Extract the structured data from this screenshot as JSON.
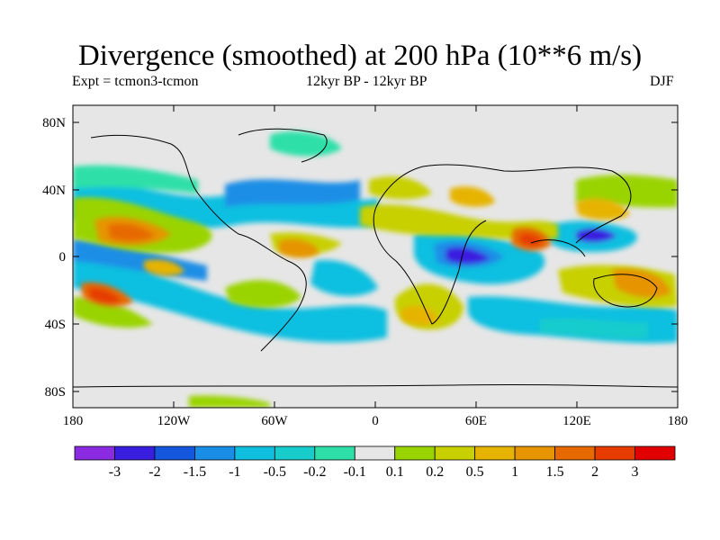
{
  "title": "Divergence (smoothed) at 200 hPa (10**6 m/s)",
  "experiment": "Expt = tcmon3-tcmon",
  "period": "12kyr BP - 12kyr BP",
  "season": "DJF",
  "lat_ticks": [
    "80N",
    "40N",
    "0",
    "40S",
    "80S"
  ],
  "lon_ticks": [
    "180",
    "120W",
    "60W",
    "0",
    "60E",
    "120E",
    "180"
  ],
  "legend": {
    "colors": [
      "#8a2be2",
      "#3a1ee0",
      "#1457dc",
      "#1a8ee6",
      "#10bfe0",
      "#18cccc",
      "#2ee0a8",
      "#e6e6e6",
      "#9ad400",
      "#c8d000",
      "#e6b400",
      "#e69400",
      "#e66a00",
      "#e63c00",
      "#e00000"
    ],
    "labels": [
      "-3",
      "-2",
      "-1.5",
      "-1",
      "-0.5",
      "-0.2",
      "-0.1",
      "0.1",
      "0.2",
      "0.5",
      "1",
      "1.5",
      "2",
      "3"
    ]
  },
  "map_data": {
    "projection": "cylindrical equidistant",
    "lon_range": [
      -180,
      180
    ],
    "lat_range": [
      -90,
      90
    ],
    "background": "#e6e6e6",
    "features": [
      {
        "name": "strong-convergence-indian-ocean",
        "lon": 40,
        "lat": 0,
        "level": -3
      },
      {
        "name": "strong-convergence-west-pacific",
        "lon": 128,
        "lat": 12,
        "level": -3
      },
      {
        "name": "convergence-east-pacific",
        "lon": -105,
        "lat": -8,
        "level": -1
      },
      {
        "name": "convergence-north-atlantic",
        "lon": -30,
        "lat": 30,
        "level": -0.5
      },
      {
        "name": "convergence-north-pacific",
        "lon": -170,
        "lat": 30,
        "level": -1
      },
      {
        "name": "divergence-central-pacific",
        "lon": -150,
        "lat": 10,
        "level": 1.5
      },
      {
        "name": "divergence-south-pacific",
        "lon": -158,
        "lat": -22,
        "level": 2
      },
      {
        "name": "divergence-bay-of-bengal",
        "lon": 88,
        "lat": 5,
        "level": 2
      },
      {
        "name": "divergence-maritime-continent",
        "lon": 150,
        "lat": -15,
        "level": 1.5
      },
      {
        "name": "divergence-east-asia",
        "lon": 118,
        "lat": 30,
        "level": 1
      },
      {
        "name": "divergence-west-atlantic",
        "lon": -60,
        "lat": 5,
        "level": 1
      }
    ]
  }
}
